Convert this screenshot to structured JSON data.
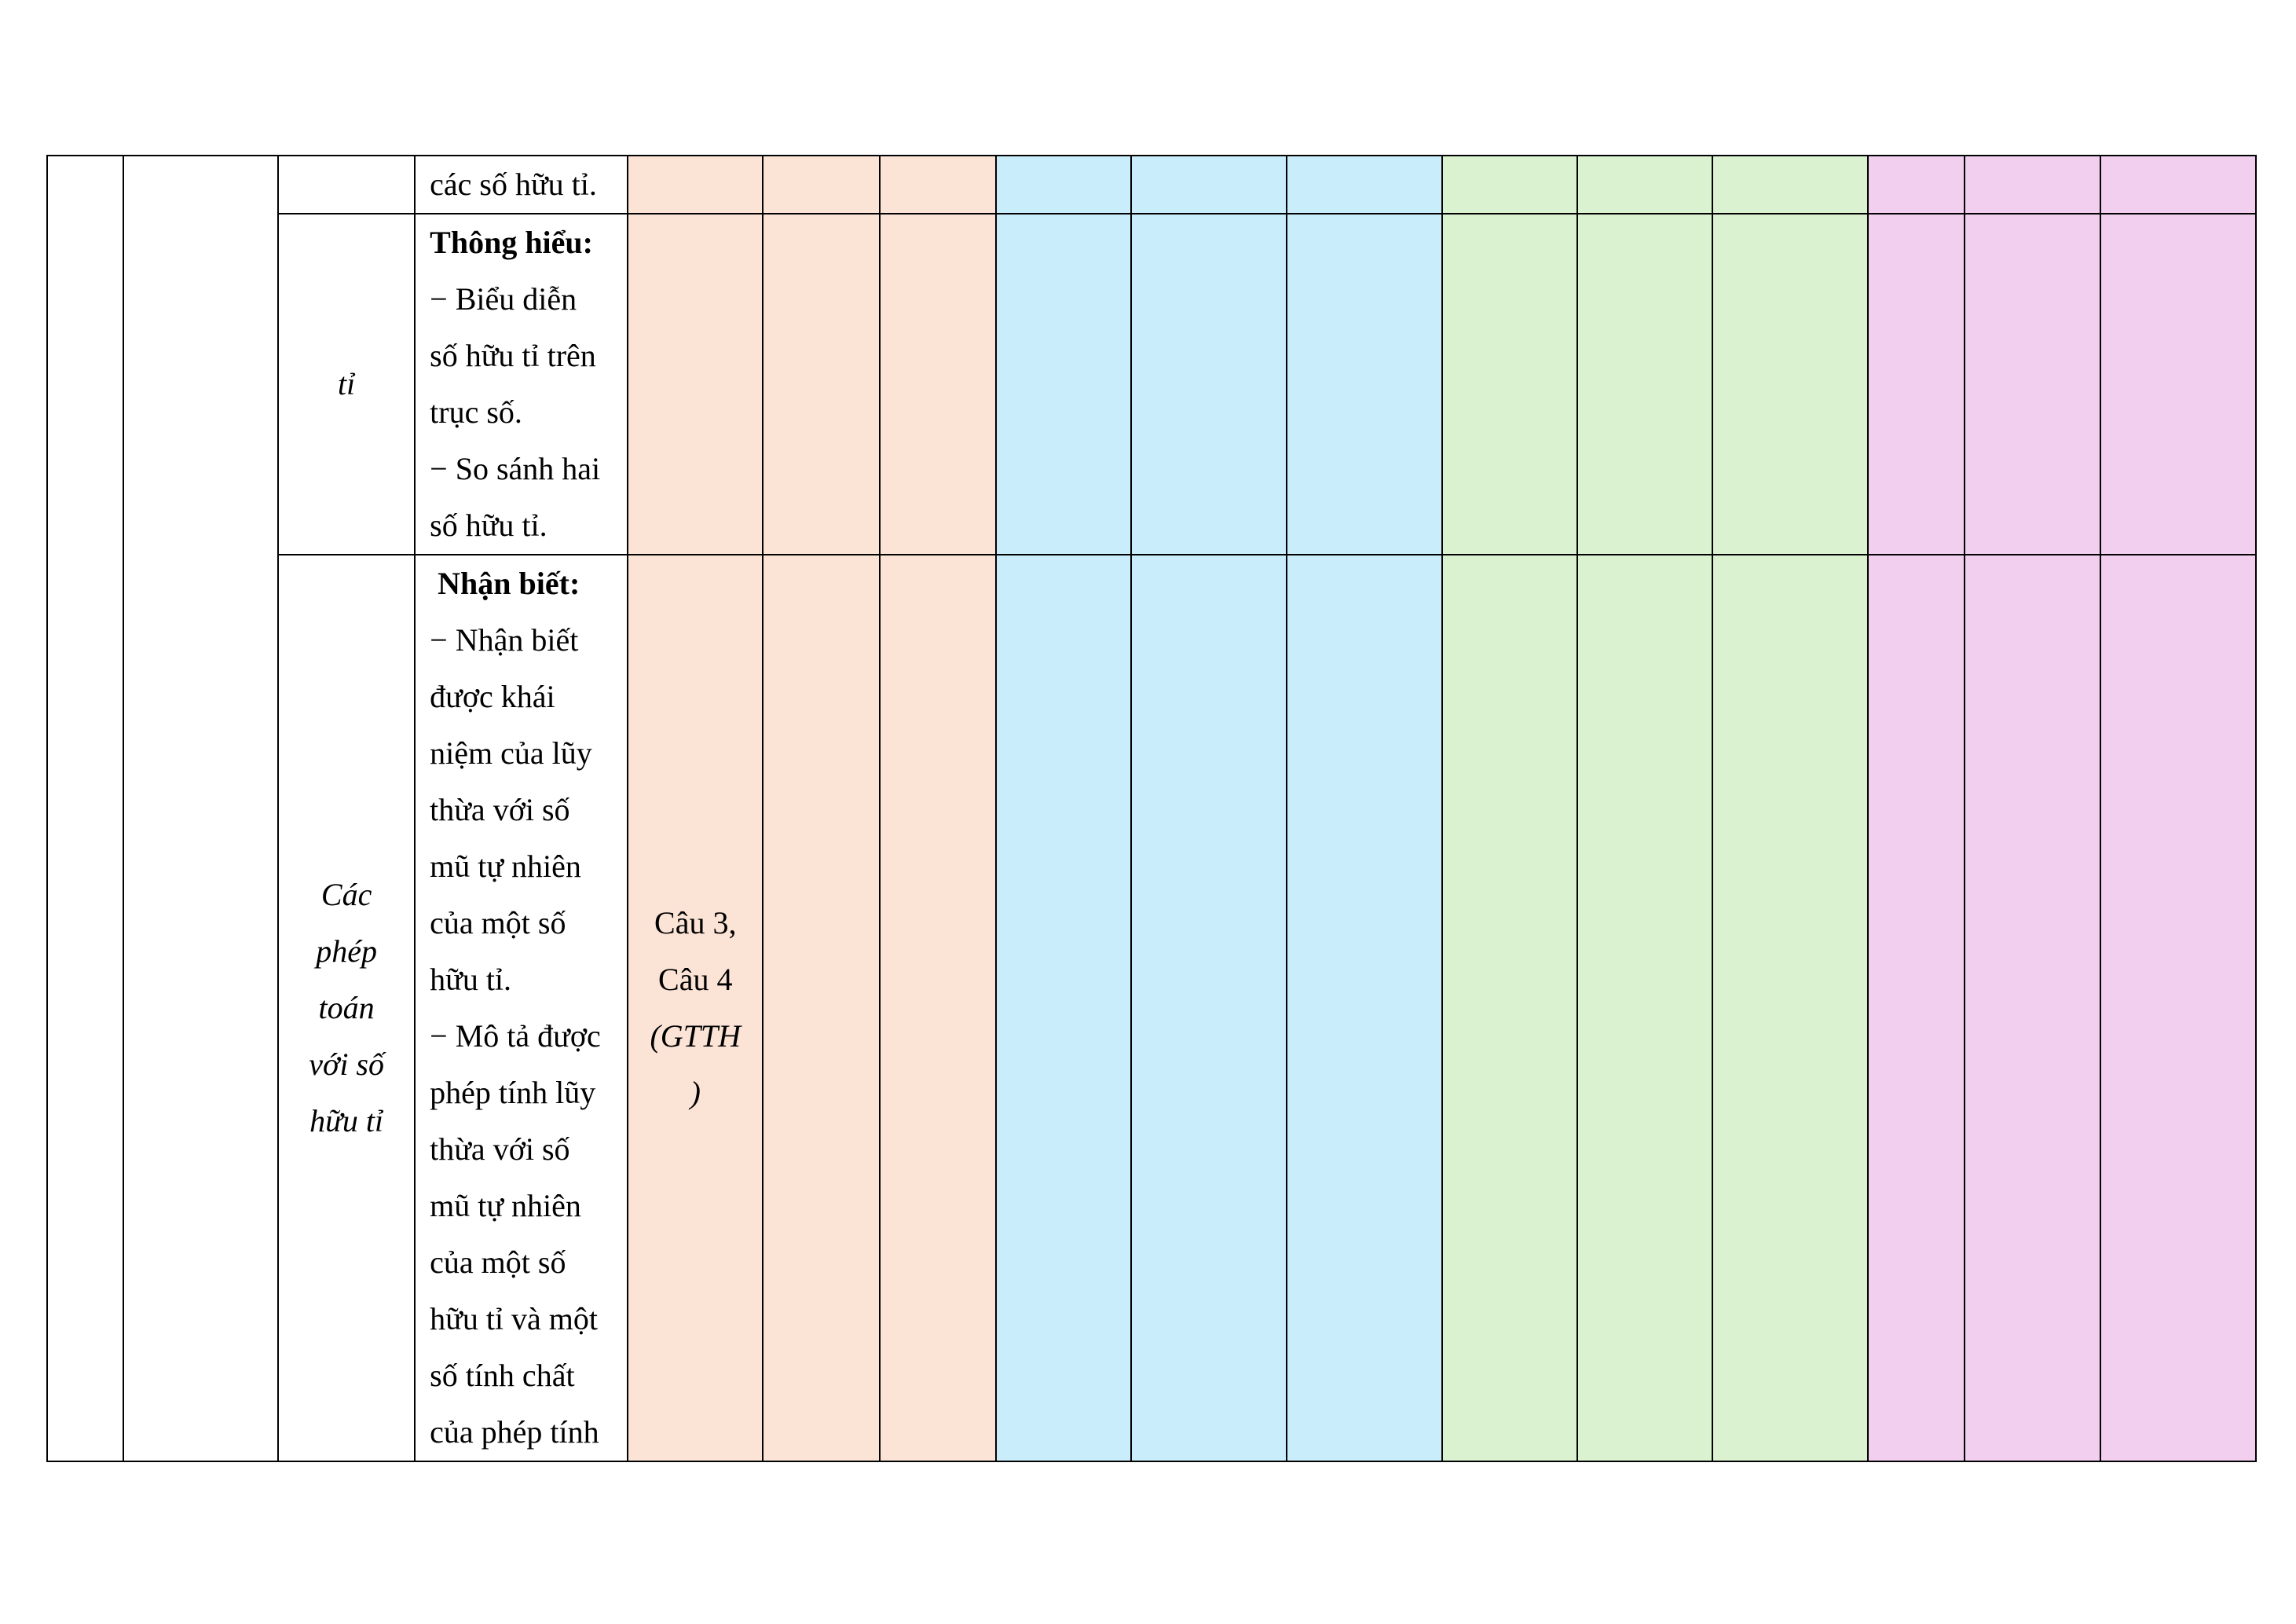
{
  "row1": {
    "desc": "các số hữu tỉ."
  },
  "row2": {
    "topic": "tỉ",
    "level": "Thông hiểu:",
    "lines": [
      "− Biểu diễn",
      "số hữu tỉ trên",
      "trục số.",
      "− So sánh hai",
      "số hữu tỉ."
    ]
  },
  "row3": {
    "topic_lines": [
      "Các",
      "phép",
      "toán",
      "với số",
      "hữu tỉ"
    ],
    "level": "Nhận biết:",
    "lines": [
      "− Nhận biết",
      "được khái",
      "niệm của lũy",
      "thừa với số",
      "mũ tự nhiên",
      "của một số",
      "hữu tỉ.",
      "− Mô tả được",
      "phép tính lũy",
      "thừa với số",
      "mũ tự nhiên",
      "của một số",
      "hữu tỉ và một",
      "số tính chất",
      "của phép tính"
    ],
    "question_lines": [
      "Câu 3,",
      "Câu 4"
    ],
    "question_note_lines": [
      "(GTTH",
      ")"
    ]
  },
  "colors": {
    "peach": "#fbe3d6",
    "blue": "#caedfb",
    "green": "#daf2d0",
    "pink": "#f2ceef"
  }
}
